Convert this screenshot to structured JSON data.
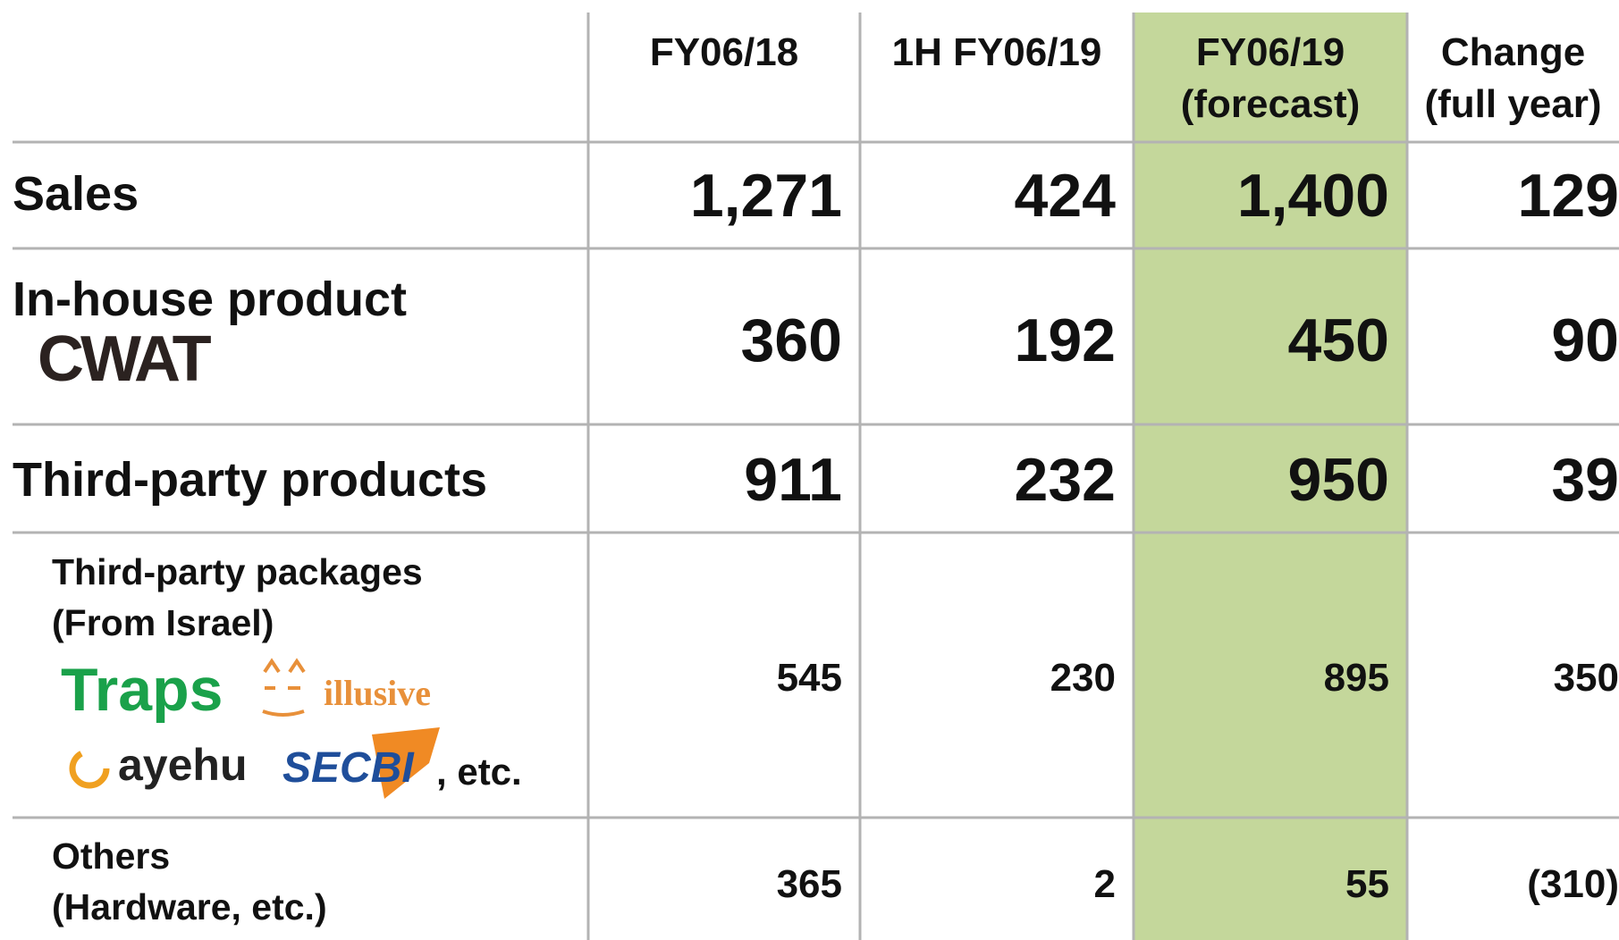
{
  "table": {
    "columns": [
      [
        "FY06/18"
      ],
      [
        "1H FY06/19"
      ],
      [
        "FY06/19",
        "(forecast)"
      ],
      [
        "Change",
        "(full year)"
      ]
    ],
    "rows": [
      {
        "label": [
          "Sales"
        ],
        "values": [
          "1,271",
          "424",
          "1,400",
          "129"
        ]
      },
      {
        "label": [
          "In-house product"
        ],
        "logos": [
          "CWAT"
        ],
        "values": [
          "360",
          "192",
          "450",
          "90"
        ]
      },
      {
        "label": [
          "Third-party products"
        ],
        "values": [
          "911",
          "232",
          "950",
          "39"
        ]
      },
      {
        "label": [
          "Third-party packages",
          "(From Israel)"
        ],
        "logos": [
          "Traps",
          "illusive",
          "ayehu",
          "SECBI",
          ", etc."
        ],
        "values": [
          "545",
          "230",
          "895",
          "350"
        ]
      },
      {
        "label": [
          "Others",
          " (Hardware, etc.)"
        ],
        "values": [
          "365",
          "2",
          "55",
          "(310)"
        ]
      }
    ]
  }
}
